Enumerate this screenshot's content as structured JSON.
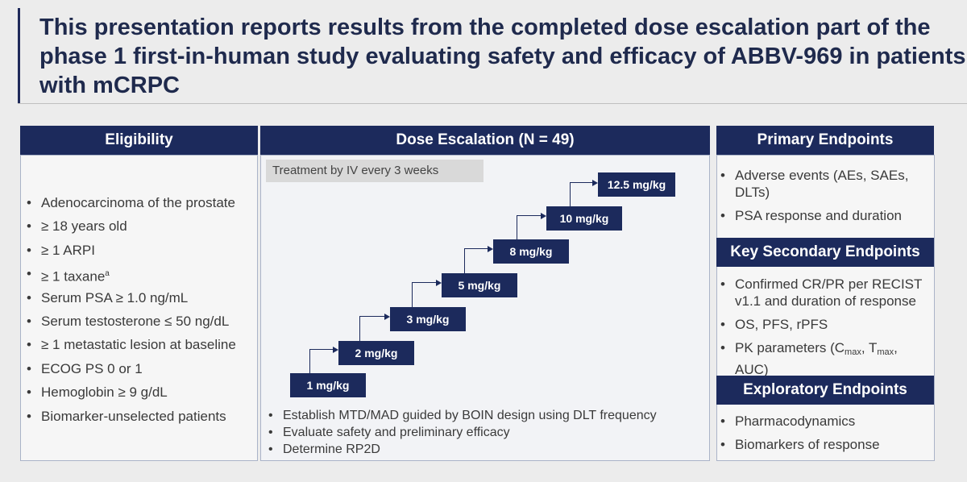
{
  "title": "This presentation reports results from the completed dose escalation part of the phase 1 first-in-human study evaluating safety and efficacy of ABBV-969 in patients with mCRPC",
  "eligibility": {
    "header": "Eligibility",
    "items": [
      "Adenocarcinoma of the prostate",
      "≥ 18 years old",
      "≥ 1 ARPI",
      "≥ 1 taxane",
      "Serum PSA ≥ 1.0 ng/mL",
      "Serum testosterone  ≤ 50 ng/dL",
      "≥ 1 metastatic lesion at baseline",
      "ECOG PS 0 or 1",
      "Hemoglobin  ≥ 9 g/dL",
      "Biomarker-unselected patients"
    ],
    "taxane_footnote": "a"
  },
  "dose_escalation": {
    "header": "Dose Escalation (N = 49)",
    "treatment": "Treatment by IV every 3 weeks",
    "doses": [
      "1 mg/kg",
      "2 mg/kg",
      "3 mg/kg",
      "5 mg/kg",
      "8 mg/kg",
      "10 mg/kg",
      "12.5 mg/kg"
    ],
    "notes": [
      "Establish MTD/MAD guided by BOIN design using DLT frequency",
      "Evaluate safety and preliminary efficacy",
      "Determine RP2D"
    ]
  },
  "primary_endpoints": {
    "header": "Primary Endpoints",
    "items": [
      "Adverse events (AEs, SAEs, DLTs)",
      "PSA response and duration"
    ]
  },
  "secondary_endpoints": {
    "header": "Key Secondary Endpoints",
    "items": [
      "Confirmed CR/PR per RECIST v1.1 and duration of response",
      "OS, PFS, rPFS"
    ],
    "pk_prefix": "PK parameters (C",
    "pk_sub1": "max",
    "pk_mid": ", T",
    "pk_sub2": "max",
    "pk_suffix": ", AUC)"
  },
  "exploratory_endpoints": {
    "header": "Exploratory Endpoints",
    "items": [
      "Pharmacodynamics",
      "Biomarkers of response"
    ]
  },
  "colors": {
    "navy": "#1c2a5c",
    "title": "#1f2a4d"
  }
}
